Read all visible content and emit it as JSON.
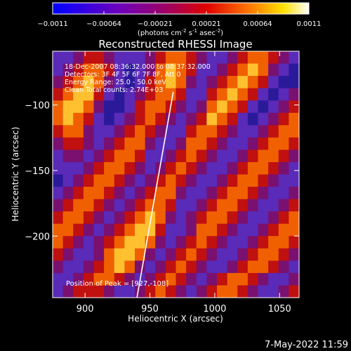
{
  "colorbar": {
    "ticks": [
      "-0.0011",
      "-0.00064",
      "-0.00021",
      "0.00021",
      "0.00064",
      "0.0011"
    ],
    "units_main": "(photons cm",
    "units_exp1": "-2",
    "units_s": " s",
    "units_exp2": "-1",
    "units_asec": " asec",
    "units_exp3": "-2",
    "units_close": ")"
  },
  "annotations": {
    "line1": "18-Dec-2007 08:36:32.000 to 08:37:32.000",
    "line2": "Detectors: 3F 4F 5F 6F 7F 8F, Att 0",
    "line3": "Energy Range: 25.0 - 50.0 keV",
    "line4": "Clean    Total counts: 2.74E+03",
    "peak": "Position of Peak = [927,-108]"
  },
  "footer": {
    "timestamp": "7-May-2022 11:59"
  },
  "chart_data": {
    "type": "heatmap",
    "title": "Reconstructed RHESSI Image",
    "xlabel": "Heliocentric X (arcsec)",
    "ylabel": "Heliocentric Y (arcsec)",
    "xlim": [
      875,
      1065
    ],
    "ylim": [
      -247,
      -59
    ],
    "x_ticks": [
      900,
      950,
      1000,
      1050
    ],
    "y_ticks": [
      -100,
      -150,
      -200
    ],
    "x_tick_labels": [
      "900",
      "950",
      "1000",
      "1050"
    ],
    "y_tick_labels": [
      "-100",
      "-150",
      "-200"
    ],
    "colormap": "rainbow-like (blue-purple-red-orange-yellow-white)",
    "color_range": [
      -0.0011,
      0.0011
    ],
    "peak_position": [
      927,
      -108
    ],
    "limb_line": [
      [
        940,
        -247
      ],
      [
        968,
        -90
      ]
    ],
    "grid_rows": [
      [
        2,
        2,
        3,
        4,
        4,
        3,
        2,
        2,
        2,
        3,
        4,
        5,
        5,
        4,
        3,
        2,
        2,
        3,
        4,
        5,
        5,
        4,
        3,
        2
      ],
      [
        2,
        3,
        4,
        5,
        5,
        4,
        2,
        1,
        2,
        3,
        5,
        6,
        5,
        4,
        2,
        2,
        3,
        4,
        5,
        6,
        5,
        3,
        2,
        1
      ],
      [
        3,
        4,
        5,
        6,
        5,
        3,
        2,
        1,
        2,
        4,
        5,
        6,
        5,
        3,
        2,
        3,
        4,
        5,
        6,
        5,
        4,
        2,
        1,
        1
      ],
      [
        4,
        5,
        6,
        6,
        4,
        2,
        1,
        2,
        3,
        4,
        5,
        5,
        4,
        2,
        2,
        4,
        5,
        6,
        5,
        4,
        2,
        1,
        2,
        3
      ],
      [
        5,
        6,
        6,
        5,
        3,
        1,
        1,
        2,
        4,
        5,
        5,
        4,
        3,
        2,
        3,
        5,
        6,
        5,
        4,
        2,
        1,
        2,
        3,
        4
      ],
      [
        5,
        6,
        5,
        4,
        2,
        1,
        2,
        3,
        4,
        5,
        4,
        3,
        2,
        3,
        4,
        6,
        5,
        4,
        2,
        1,
        2,
        3,
        4,
        5
      ],
      [
        4,
        5,
        5,
        3,
        2,
        2,
        3,
        4,
        5,
        4,
        3,
        2,
        2,
        4,
        5,
        5,
        4,
        3,
        2,
        2,
        3,
        4,
        5,
        5
      ],
      [
        3,
        4,
        4,
        3,
        2,
        3,
        4,
        5,
        5,
        3,
        2,
        2,
        3,
        5,
        5,
        4,
        3,
        2,
        2,
        3,
        4,
        5,
        5,
        4
      ],
      [
        2,
        3,
        3,
        2,
        3,
        4,
        5,
        5,
        4,
        2,
        2,
        3,
        4,
        5,
        4,
        3,
        2,
        2,
        3,
        4,
        5,
        5,
        4,
        3
      ],
      [
        2,
        2,
        2,
        3,
        4,
        5,
        5,
        4,
        3,
        2,
        3,
        4,
        5,
        4,
        3,
        2,
        2,
        3,
        4,
        5,
        5,
        4,
        3,
        2
      ],
      [
        1,
        2,
        3,
        4,
        5,
        5,
        4,
        3,
        2,
        3,
        4,
        5,
        4,
        3,
        2,
        2,
        3,
        4,
        5,
        5,
        4,
        3,
        2,
        2
      ],
      [
        2,
        3,
        4,
        5,
        5,
        4,
        3,
        2,
        3,
        4,
        5,
        5,
        3,
        2,
        2,
        3,
        4,
        5,
        5,
        4,
        3,
        2,
        2,
        3
      ],
      [
        3,
        4,
        5,
        5,
        4,
        3,
        2,
        3,
        4,
        5,
        5,
        4,
        2,
        2,
        3,
        4,
        5,
        5,
        4,
        3,
        2,
        2,
        3,
        4
      ],
      [
        4,
        5,
        5,
        4,
        3,
        2,
        3,
        4,
        5,
        6,
        5,
        3,
        2,
        3,
        4,
        5,
        5,
        4,
        3,
        2,
        2,
        3,
        4,
        5
      ],
      [
        5,
        5,
        4,
        3,
        2,
        3,
        4,
        5,
        6,
        6,
        4,
        2,
        2,
        3,
        5,
        5,
        4,
        3,
        2,
        2,
        3,
        4,
        5,
        5
      ],
      [
        5,
        4,
        3,
        2,
        3,
        4,
        5,
        6,
        6,
        5,
        3,
        2,
        3,
        4,
        5,
        4,
        3,
        2,
        2,
        3,
        4,
        5,
        5,
        4
      ],
      [
        4,
        3,
        2,
        2,
        3,
        5,
        6,
        6,
        5,
        3,
        2,
        3,
        4,
        5,
        4,
        3,
        2,
        2,
        3,
        4,
        5,
        5,
        4,
        3
      ],
      [
        3,
        2,
        2,
        3,
        4,
        5,
        6,
        5,
        3,
        2,
        3,
        4,
        5,
        4,
        3,
        2,
        2,
        3,
        4,
        5,
        5,
        4,
        3,
        2
      ],
      [
        2,
        2,
        3,
        4,
        5,
        5,
        4,
        3,
        2,
        3,
        4,
        5,
        4,
        3,
        2,
        3,
        4,
        5,
        5,
        4,
        3,
        2,
        2,
        3
      ],
      [
        2,
        3,
        4,
        4,
        4,
        3,
        2,
        2,
        3,
        4,
        5,
        4,
        3,
        2,
        3,
        4,
        5,
        5,
        4,
        3,
        2,
        2,
        3,
        4
      ]
    ]
  }
}
